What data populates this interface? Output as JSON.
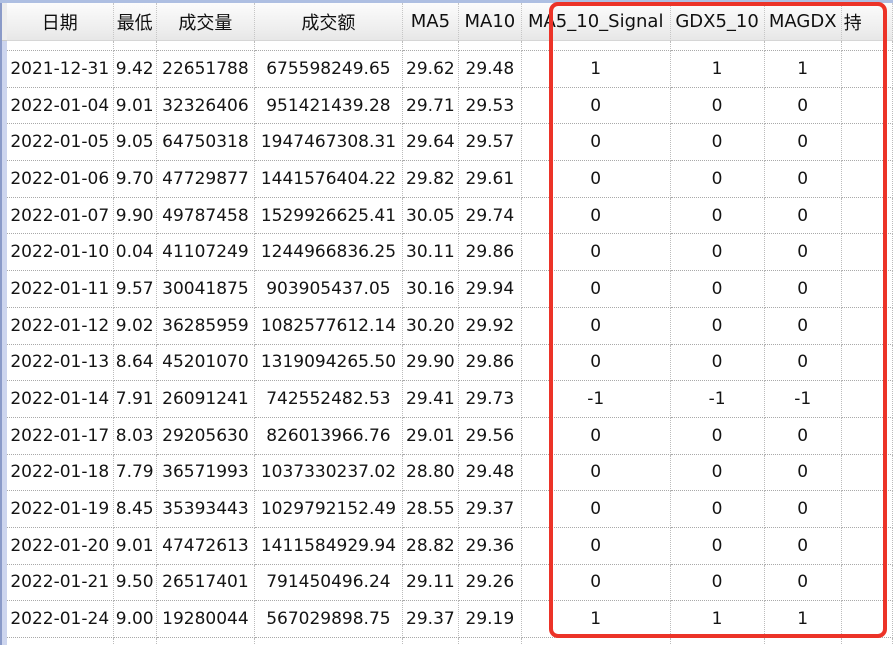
{
  "table": {
    "headers": [
      "日期",
      "最低",
      "成交量",
      "成交额",
      "MA5",
      "MA10",
      "MA5_10_Signal",
      "GDX5_10",
      "MAGDX"
    ],
    "partial_header": "持",
    "rows": [
      [
        "2021-12-31",
        "9.42",
        "22651788",
        "675598249.65",
        "29.62",
        "29.48",
        "1",
        "1",
        "1"
      ],
      [
        "2022-01-04",
        "9.01",
        "32326406",
        "951421439.28",
        "29.71",
        "29.53",
        "0",
        "0",
        "0"
      ],
      [
        "2022-01-05",
        "9.05",
        "64750318",
        "1947467308.31",
        "29.64",
        "29.57",
        "0",
        "0",
        "0"
      ],
      [
        "2022-01-06",
        "9.70",
        "47729877",
        "1441576404.22",
        "29.82",
        "29.61",
        "0",
        "0",
        "0"
      ],
      [
        "2022-01-07",
        "9.90",
        "49787458",
        "1529926625.41",
        "30.05",
        "29.74",
        "0",
        "0",
        "0"
      ],
      [
        "2022-01-10",
        "0.04",
        "41107249",
        "1244966836.25",
        "30.11",
        "29.86",
        "0",
        "0",
        "0"
      ],
      [
        "2022-01-11",
        "9.57",
        "30041875",
        "903905437.05",
        "30.16",
        "29.94",
        "0",
        "0",
        "0"
      ],
      [
        "2022-01-12",
        "9.02",
        "36285959",
        "1082577612.14",
        "30.20",
        "29.92",
        "0",
        "0",
        "0"
      ],
      [
        "2022-01-13",
        "8.64",
        "45201070",
        "1319094265.50",
        "29.90",
        "29.86",
        "0",
        "0",
        "0"
      ],
      [
        "2022-01-14",
        "7.91",
        "26091241",
        "742552482.53",
        "29.41",
        "29.73",
        "-1",
        "-1",
        "-1"
      ],
      [
        "2022-01-17",
        "8.03",
        "29205630",
        "826013966.76",
        "29.01",
        "29.56",
        "0",
        "0",
        "0"
      ],
      [
        "2022-01-18",
        "7.79",
        "36571993",
        "1037330237.02",
        "28.80",
        "29.48",
        "0",
        "0",
        "0"
      ],
      [
        "2022-01-19",
        "8.45",
        "35393443",
        "1029792152.49",
        "28.55",
        "29.37",
        "0",
        "0",
        "0"
      ],
      [
        "2022-01-20",
        "9.01",
        "47472613",
        "1411584929.94",
        "28.82",
        "29.36",
        "0",
        "0",
        "0"
      ],
      [
        "2022-01-21",
        "9.50",
        "26517401",
        "791450496.24",
        "29.11",
        "29.26",
        "0",
        "0",
        "0"
      ],
      [
        "2022-01-24",
        "9.00",
        "19280044",
        "567029898.75",
        "29.37",
        "29.19",
        "1",
        "1",
        "1"
      ]
    ]
  },
  "highlight": {
    "color": "#ec3328",
    "highlighted_columns": [
      "MA5_10_Signal",
      "GDX5_10",
      "MAGDX"
    ]
  }
}
